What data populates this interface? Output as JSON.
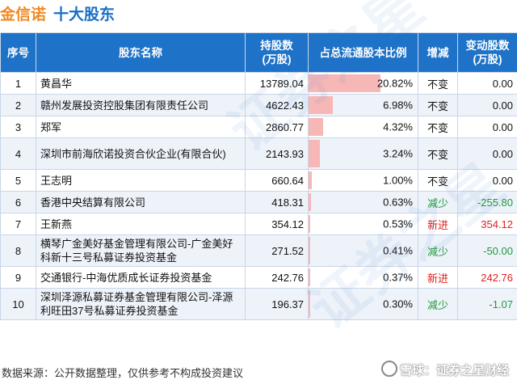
{
  "title": {
    "company": "金信诺",
    "subtitle": "十大股东"
  },
  "headers": {
    "idx": "序号",
    "name": "股东名称",
    "shares": "持股数\n(万股)",
    "ratio": "占总流通股本比例",
    "change": "增减",
    "delta": "变动股数\n(万股)"
  },
  "rows": [
    {
      "idx": "1",
      "name": "黄昌华",
      "shares": "13789.04",
      "ratio": "20.82%",
      "ratio_value": 20.82,
      "change": "不变",
      "change_type": "same",
      "delta": "0.00"
    },
    {
      "idx": "2",
      "name": "赣州发展投资控股集团有限责任公司",
      "shares": "4622.43",
      "ratio": "6.98%",
      "ratio_value": 6.98,
      "change": "不变",
      "change_type": "same",
      "delta": "0.00"
    },
    {
      "idx": "3",
      "name": "郑军",
      "shares": "2860.77",
      "ratio": "4.32%",
      "ratio_value": 4.32,
      "change": "不变",
      "change_type": "same",
      "delta": "0.00"
    },
    {
      "idx": "4",
      "name": "深圳市前海欣诺投资合伙企业(有限合伙)",
      "shares": "2143.93",
      "ratio": "3.24%",
      "ratio_value": 3.24,
      "change": "不变",
      "change_type": "same",
      "delta": "0.00"
    },
    {
      "idx": "5",
      "name": "王志明",
      "shares": "660.64",
      "ratio": "1.00%",
      "ratio_value": 1.0,
      "change": "不变",
      "change_type": "same",
      "delta": "0.00"
    },
    {
      "idx": "6",
      "name": "香港中央结算有限公司",
      "shares": "418.31",
      "ratio": "0.63%",
      "ratio_value": 0.63,
      "change": "减少",
      "change_type": "down",
      "delta": "-255.80"
    },
    {
      "idx": "7",
      "name": "王新燕",
      "shares": "354.12",
      "ratio": "0.53%",
      "ratio_value": 0.53,
      "change": "新进",
      "change_type": "up",
      "delta": "354.12"
    },
    {
      "idx": "8",
      "name": "横琴广金美好基金管理有限公司-广金美好科新十三号私募证券投资基金",
      "shares": "271.52",
      "ratio": "0.41%",
      "ratio_value": 0.41,
      "change": "减少",
      "change_type": "down",
      "delta": "-50.00"
    },
    {
      "idx": "9",
      "name": "交通银行-中海优质成长证券投资基金",
      "shares": "242.76",
      "ratio": "0.37%",
      "ratio_value": 0.37,
      "change": "新进",
      "change_type": "up",
      "delta": "242.76"
    },
    {
      "idx": "10",
      "name": "深圳泽源私募证券基金管理有限公司-泽源利旺田37号私募证券投资基金",
      "shares": "196.37",
      "ratio": "0.30%",
      "ratio_value": 0.3,
      "change": "减少",
      "change_type": "down",
      "delta": "-1.07"
    }
  ],
  "footer": {
    "source": "数据来源：公开数据整理，仅供参考不构成投资建议"
  },
  "brand": {
    "text": "雪球：证券之星财经"
  },
  "watermark": {
    "text": "证券之星"
  },
  "colors": {
    "header_bg": "#1e73c8",
    "bar": "#f7b7b7",
    "title_orange": "#f08a24",
    "title_blue": "#1a6fc6",
    "up": "#e0201c",
    "down": "#1f9a3a"
  }
}
